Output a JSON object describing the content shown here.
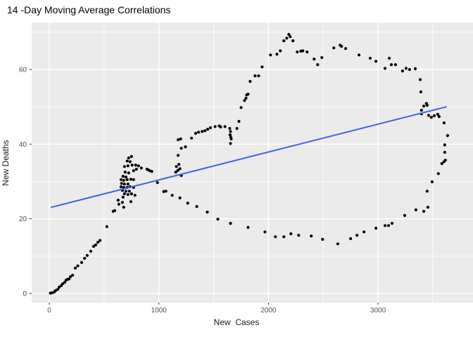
{
  "page": {
    "title": "14 -Day Moving Average Correlations"
  },
  "chart_data": {
    "type": "scatter",
    "title": "14 -Day Moving Average Correlations",
    "xlabel": "New  Cases",
    "ylabel": "New Deaths",
    "legend": "none",
    "grid": true,
    "x_ticks": [
      0,
      1000,
      2000,
      3000
    ],
    "x_minor_ticks": [
      500,
      1500,
      2500,
      3500
    ],
    "y_ticks": [
      0,
      20,
      40,
      60
    ],
    "y_minor_ticks": [
      10,
      30,
      50,
      70
    ],
    "x_range": [
      -161,
      3867
    ],
    "y_range": [
      -2.44,
      72.6
    ],
    "panel_color": "#EBEBEB",
    "grid_color": "#FFFFFF",
    "point_color": "#000000",
    "tick_label_color": "#4d4d4d",
    "tick_mark_color": "#333333",
    "trend": {
      "type": "linear",
      "color": "#3A64E8",
      "x1": 19,
      "y1": 23.1,
      "x2": 3622,
      "y2": 50.0
    },
    "points": [
      [
        10,
        0.1
      ],
      [
        26,
        0.2
      ],
      [
        45,
        0.4
      ],
      [
        58,
        0.8
      ],
      [
        77,
        1.1
      ],
      [
        90,
        1.7
      ],
      [
        109,
        2.1
      ],
      [
        122,
        2.6
      ],
      [
        141,
        3.0
      ],
      [
        154,
        3.6
      ],
      [
        167,
        3.8
      ],
      [
        180,
        3.9
      ],
      [
        193,
        4.5
      ],
      [
        212,
        4.9
      ],
      [
        237,
        6.8
      ],
      [
        260,
        7.4
      ],
      [
        295,
        8.3
      ],
      [
        322,
        9.4
      ],
      [
        346,
        10.2
      ],
      [
        378,
        11.3
      ],
      [
        404,
        12.6
      ],
      [
        423,
        13.0
      ],
      [
        442,
        13.7
      ],
      [
        462,
        14.2
      ],
      [
        525,
        17.9
      ],
      [
        583,
        22.0
      ],
      [
        597,
        22.2
      ],
      [
        635,
        23.9
      ],
      [
        667,
        24.4
      ],
      [
        628,
        25.0
      ],
      [
        654,
        28.6
      ],
      [
        654,
        30.5
      ],
      [
        660,
        29.5
      ],
      [
        667,
        27.6
      ],
      [
        673,
        25.8
      ],
      [
        673,
        31.4
      ],
      [
        679,
        23.1
      ],
      [
        679,
        28.4
      ],
      [
        679,
        30.3
      ],
      [
        686,
        26.7
      ],
      [
        686,
        29.3
      ],
      [
        686,
        34.0
      ],
      [
        692,
        32.5
      ],
      [
        699,
        27.4
      ],
      [
        699,
        31.2
      ],
      [
        711,
        28.4
      ],
      [
        711,
        30.5
      ],
      [
        711,
        35.5
      ],
      [
        718,
        26.5
      ],
      [
        718,
        29.3
      ],
      [
        718,
        34.2
      ],
      [
        724,
        32.3
      ],
      [
        724,
        36.3
      ],
      [
        731,
        27.4
      ],
      [
        737,
        28.6
      ],
      [
        737,
        35.3
      ],
      [
        744,
        24.6
      ],
      [
        744,
        30.6
      ],
      [
        750,
        26.7
      ],
      [
        750,
        36.7
      ],
      [
        756,
        34.4
      ],
      [
        769,
        28.4
      ],
      [
        769,
        30.5
      ],
      [
        769,
        32.9
      ],
      [
        782,
        26.3
      ],
      [
        788,
        34.4
      ],
      [
        795,
        33.3
      ],
      [
        814,
        34.2
      ],
      [
        840,
        33.6
      ],
      [
        891,
        33.3
      ],
      [
        904,
        33.1
      ],
      [
        917,
        32.9
      ],
      [
        936,
        32.7
      ],
      [
        987,
        29.7
      ],
      [
        1154,
        32.5
      ],
      [
        1160,
        34.0
      ],
      [
        1173,
        33.0
      ],
      [
        1182,
        34.6
      ],
      [
        1192,
        33.4
      ],
      [
        1205,
        31.6
      ],
      [
        1176,
        37.0
      ],
      [
        1205,
        38.9
      ],
      [
        1243,
        39.3
      ],
      [
        1176,
        41.2
      ],
      [
        1199,
        41.4
      ],
      [
        1298,
        41.6
      ],
      [
        1336,
        42.9
      ],
      [
        1362,
        43.2
      ],
      [
        1394,
        43.4
      ],
      [
        1420,
        43.6
      ],
      [
        1445,
        44.0
      ],
      [
        1471,
        44.4
      ],
      [
        1513,
        44.7
      ],
      [
        1551,
        44.9
      ],
      [
        1564,
        44.6
      ],
      [
        1603,
        44.7
      ],
      [
        1647,
        44.2
      ],
      [
        1654,
        43.4
      ],
      [
        1650,
        42.5
      ],
      [
        1656,
        41.9
      ],
      [
        1660,
        41.4
      ],
      [
        1654,
        40.2
      ],
      [
        1712,
        44.2
      ],
      [
        1731,
        46.1
      ],
      [
        1750,
        49.8
      ],
      [
        1782,
        51.7
      ],
      [
        1795,
        52.3
      ],
      [
        1801,
        53.2
      ],
      [
        1814,
        53.4
      ],
      [
        1833,
        56.8
      ],
      [
        1878,
        58.3
      ],
      [
        1910,
        58.3
      ],
      [
        1942,
        60.7
      ],
      [
        2019,
        63.9
      ],
      [
        2077,
        64.1
      ],
      [
        2109,
        65.0
      ],
      [
        2141,
        67.7
      ],
      [
        2167,
        68.4
      ],
      [
        2186,
        69.4
      ],
      [
        2199,
        68.8
      ],
      [
        2224,
        67.7
      ],
      [
        2263,
        64.7
      ],
      [
        2295,
        64.9
      ],
      [
        2314,
        65.0
      ],
      [
        2353,
        64.7
      ],
      [
        2417,
        62.8
      ],
      [
        2449,
        61.3
      ],
      [
        2487,
        63.2
      ],
      [
        2596,
        65.8
      ],
      [
        2654,
        66.5
      ],
      [
        2667,
        66.2
      ],
      [
        2705,
        65.6
      ],
      [
        2827,
        63.9
      ],
      [
        2929,
        63.0
      ],
      [
        2981,
        62.2
      ],
      [
        3064,
        60.3
      ],
      [
        3103,
        63.0
      ],
      [
        3122,
        61.3
      ],
      [
        3160,
        61.3
      ],
      [
        3224,
        59.6
      ],
      [
        3256,
        60.3
      ],
      [
        3288,
        60.0
      ],
      [
        3340,
        60.2
      ],
      [
        3385,
        57.3
      ],
      [
        3391,
        54.0
      ],
      [
        3417,
        50.2
      ],
      [
        3397,
        49.1
      ],
      [
        3397,
        48.1
      ],
      [
        3442,
        50.9
      ],
      [
        3449,
        50.4
      ],
      [
        3462,
        47.7
      ],
      [
        3487,
        47.2
      ],
      [
        3513,
        47.6
      ],
      [
        3545,
        48.0
      ],
      [
        3558,
        47.4
      ],
      [
        3603,
        45.7
      ],
      [
        3635,
        42.3
      ],
      [
        3609,
        39.8
      ],
      [
        3609,
        37.8
      ],
      [
        3583,
        34.8
      ],
      [
        3603,
        35.3
      ],
      [
        3615,
        35.7
      ],
      [
        3551,
        32.1
      ],
      [
        3494,
        29.9
      ],
      [
        3449,
        27.4
      ],
      [
        3455,
        23.1
      ],
      [
        3417,
        22.0
      ],
      [
        3346,
        22.4
      ],
      [
        3244,
        20.9
      ],
      [
        3128,
        18.8
      ],
      [
        3096,
        18.2
      ],
      [
        3064,
        18.2
      ],
      [
        2981,
        17.5
      ],
      [
        2872,
        16.5
      ],
      [
        2808,
        15.6
      ],
      [
        2750,
        14.7
      ],
      [
        2633,
        13.3
      ],
      [
        2494,
        14.5
      ],
      [
        2391,
        15.4
      ],
      [
        2276,
        15.6
      ],
      [
        2205,
        16.0
      ],
      [
        2141,
        15.2
      ],
      [
        2064,
        15.2
      ],
      [
        1968,
        16.5
      ],
      [
        1814,
        17.7
      ],
      [
        1654,
        18.8
      ],
      [
        1538,
        19.9
      ],
      [
        1442,
        21.8
      ],
      [
        1346,
        23.3
      ],
      [
        1263,
        24.2
      ],
      [
        1192,
        25.6
      ],
      [
        1122,
        26.3
      ],
      [
        1064,
        27.4
      ],
      [
        1045,
        27.3
      ]
    ]
  }
}
